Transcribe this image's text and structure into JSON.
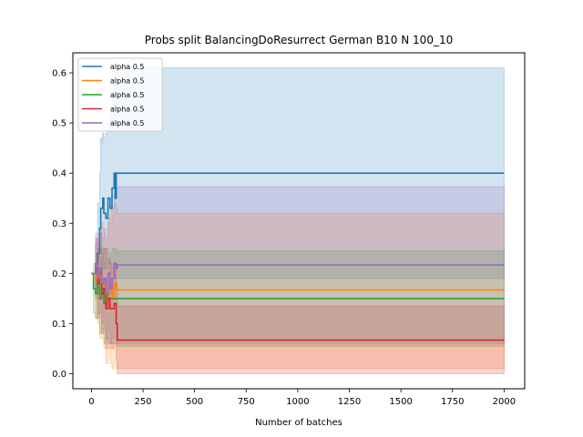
{
  "chart_data": {
    "type": "line",
    "title": "Probs split BalancingDoResurrect German B10 N 100_10",
    "xlabel": "Number of batches",
    "ylabel": "",
    "xlim": [
      -90,
      2100
    ],
    "ylim": [
      -0.03,
      0.64
    ],
    "xticks": [
      0,
      250,
      500,
      750,
      1000,
      1250,
      1500,
      1750,
      2000
    ],
    "yticks": [
      0.0,
      0.1,
      0.2,
      0.3,
      0.4,
      0.5,
      0.6
    ],
    "ytick_labels": [
      "0.0",
      "0.1",
      "0.2",
      "0.3",
      "0.4",
      "0.5",
      "0.6"
    ],
    "grid": false,
    "legend_position": "top-left",
    "series": [
      {
        "name": "alpha 0.5",
        "color": "#1f77b4",
        "x": [
          0,
          20,
          30,
          40,
          45,
          50,
          55,
          60,
          70,
          80,
          90,
          100,
          110,
          115,
          120,
          125,
          2000
        ],
        "y": [
          0.2,
          0.21,
          0.24,
          0.29,
          0.33,
          0.33,
          0.35,
          0.32,
          0.31,
          0.35,
          0.33,
          0.37,
          0.4,
          0.35,
          0.4,
          0.4,
          0.4
        ],
        "upper": [
          0.2,
          0.26,
          0.34,
          0.4,
          0.47,
          0.46,
          0.48,
          0.47,
          0.48,
          0.5,
          0.52,
          0.55,
          0.58,
          0.6,
          0.61,
          0.61,
          0.61
        ],
        "lower": [
          0.2,
          0.17,
          0.18,
          0.2,
          0.22,
          0.21,
          0.22,
          0.21,
          0.21,
          0.22,
          0.2,
          0.21,
          0.21,
          0.19,
          0.19,
          0.19,
          0.19
        ]
      },
      {
        "name": "alpha 0.5",
        "color": "#ff7f0e",
        "x": [
          0,
          20,
          30,
          40,
          50,
          60,
          70,
          80,
          90,
          100,
          110,
          120,
          125,
          2000
        ],
        "y": [
          0.2,
          0.18,
          0.2,
          0.16,
          0.19,
          0.15,
          0.13,
          0.16,
          0.17,
          0.15,
          0.18,
          0.17,
          0.167,
          0.167
        ],
        "upper": [
          0.2,
          0.24,
          0.27,
          0.25,
          0.3,
          0.28,
          0.26,
          0.3,
          0.33,
          0.31,
          0.34,
          0.33,
          0.32,
          0.32
        ],
        "lower": [
          0.2,
          0.11,
          0.1,
          0.07,
          0.07,
          0.05,
          0.02,
          0.04,
          0.02,
          0.01,
          0.02,
          0.01,
          0.01,
          0.01
        ]
      },
      {
        "name": "alpha 0.5",
        "color": "#2ca02c",
        "x": [
          0,
          10,
          20,
          30,
          40,
          50,
          60,
          70,
          80,
          90,
          100,
          110,
          120,
          125,
          2000
        ],
        "y": [
          0.2,
          0.17,
          0.16,
          0.18,
          0.15,
          0.17,
          0.14,
          0.16,
          0.15,
          0.15,
          0.15,
          0.15,
          0.15,
          0.15,
          0.15
        ],
        "upper": [
          0.2,
          0.22,
          0.22,
          0.25,
          0.23,
          0.25,
          0.22,
          0.25,
          0.24,
          0.24,
          0.25,
          0.25,
          0.24,
          0.245,
          0.245
        ],
        "lower": [
          0.2,
          0.12,
          0.11,
          0.12,
          0.08,
          0.09,
          0.06,
          0.07,
          0.06,
          0.06,
          0.06,
          0.06,
          0.055,
          0.055,
          0.055
        ]
      },
      {
        "name": "alpha 0.5",
        "color": "#d62728",
        "x": [
          0,
          20,
          30,
          40,
          50,
          60,
          70,
          80,
          90,
          100,
          110,
          120,
          125,
          2000
        ],
        "y": [
          0.2,
          0.21,
          0.18,
          0.2,
          0.16,
          0.17,
          0.13,
          0.15,
          0.13,
          0.13,
          0.14,
          0.1,
          0.067,
          0.067
        ],
        "upper": [
          0.2,
          0.27,
          0.25,
          0.28,
          0.24,
          0.25,
          0.21,
          0.23,
          0.22,
          0.21,
          0.22,
          0.18,
          0.135,
          0.135
        ],
        "lower": [
          0.2,
          0.15,
          0.11,
          0.12,
          0.08,
          0.09,
          0.05,
          0.07,
          0.05,
          0.05,
          0.06,
          0.03,
          0.0,
          0.0
        ]
      },
      {
        "name": "alpha 0.5",
        "color": "#9467bd",
        "x": [
          0,
          20,
          30,
          40,
          50,
          60,
          70,
          80,
          90,
          100,
          110,
          120,
          125,
          2000
        ],
        "y": [
          0.2,
          0.22,
          0.19,
          0.21,
          0.18,
          0.19,
          0.16,
          0.2,
          0.17,
          0.19,
          0.22,
          0.21,
          0.217,
          0.217
        ],
        "upper": [
          0.2,
          0.28,
          0.26,
          0.29,
          0.27,
          0.29,
          0.27,
          0.31,
          0.3,
          0.33,
          0.36,
          0.37,
          0.373,
          0.373
        ],
        "lower": [
          0.2,
          0.16,
          0.12,
          0.13,
          0.1,
          0.1,
          0.07,
          0.09,
          0.06,
          0.07,
          0.09,
          0.06,
          0.06,
          0.06
        ]
      }
    ]
  }
}
